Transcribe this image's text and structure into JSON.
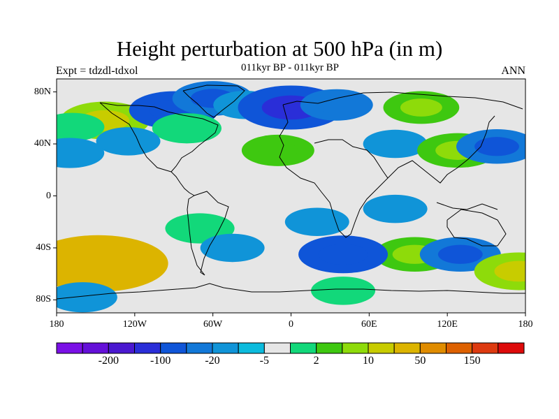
{
  "title": "Height perturbation at 500 hPa (in m)",
  "subtitle": "011kyr BP - 011kyr BP",
  "left_label": "Expt = tdzdl-tdxol",
  "right_label": "ANN",
  "chart_data": {
    "type": "heatmap",
    "title": "Height perturbation at 500 hPa (in m)",
    "subtitle": "011kyr BP - 011kyr BP",
    "annotation_left": "Expt = tdzdl-tdxol",
    "annotation_right": "ANN",
    "projection": "cylindrical-equidistant",
    "xlim": [
      -180,
      180
    ],
    "ylim": [
      -90,
      90
    ],
    "x_ticks": [
      {
        "value": -180,
        "label": "180"
      },
      {
        "value": -120,
        "label": "120W"
      },
      {
        "value": -60,
        "label": "60W"
      },
      {
        "value": 0,
        "label": "0"
      },
      {
        "value": 60,
        "label": "60E"
      },
      {
        "value": 120,
        "label": "120E"
      },
      {
        "value": 180,
        "label": "180"
      }
    ],
    "y_ticks": [
      {
        "value": 80,
        "label": "80N"
      },
      {
        "value": 40,
        "label": "40N"
      },
      {
        "value": 0,
        "label": "0"
      },
      {
        "value": -40,
        "label": "40S"
      },
      {
        "value": -80,
        "label": "80S"
      }
    ],
    "colorbar": {
      "colors": [
        "#7a10e6",
        "#6410d8",
        "#4a18d0",
        "#2a2ed8",
        "#0f55d8",
        "#1278d8",
        "#1094d8",
        "#0cbbdd",
        "#e6e6e6",
        "#12d87a",
        "#3ec810",
        "#8edb0a",
        "#c8cc00",
        "#dcb400",
        "#e08c00",
        "#dd6000",
        "#dd3a10",
        "#dd0a0a"
      ],
      "tick_labels": [
        "-200",
        "-100",
        "-20",
        "-5",
        "2",
        "10",
        "50",
        "150"
      ]
    },
    "fields": [
      {
        "lon": -143,
        "lat": 58,
        "value": 20
      },
      {
        "lon": -168,
        "lat": 53,
        "value": 5
      },
      {
        "lon": -90,
        "lat": 66,
        "value": -20
      },
      {
        "lon": -60,
        "lat": 75,
        "value": -15
      },
      {
        "lon": -35,
        "lat": 70,
        "value": -5
      },
      {
        "lon": -80,
        "lat": 52,
        "value": 8
      },
      {
        "lon": -125,
        "lat": 42,
        "value": -5
      },
      {
        "lon": 0,
        "lat": 68,
        "value": -30
      },
      {
        "lon": -10,
        "lat": 35,
        "value": 10
      },
      {
        "lon": 35,
        "lat": 70,
        "value": -10
      },
      {
        "lon": 100,
        "lat": 68,
        "value": 12
      },
      {
        "lon": 80,
        "lat": 40,
        "value": -5
      },
      {
        "lon": 128,
        "lat": 35,
        "value": 15
      },
      {
        "lon": 158,
        "lat": 38,
        "value": -15
      },
      {
        "lon": -170,
        "lat": 33,
        "value": -8
      },
      {
        "lon": -70,
        "lat": -25,
        "value": 8
      },
      {
        "lon": 20,
        "lat": -20,
        "value": -5
      },
      {
        "lon": 80,
        "lat": -10,
        "value": -5
      },
      {
        "lon": 95,
        "lat": -45,
        "value": 15
      },
      {
        "lon": 130,
        "lat": -45,
        "value": -15
      },
      {
        "lon": -148,
        "lat": -52,
        "value": 50
      },
      {
        "lon": 40,
        "lat": -45,
        "value": -20
      },
      {
        "lon": -45,
        "lat": -40,
        "value": -5
      },
      {
        "lon": 40,
        "lat": -73,
        "value": 5
      },
      {
        "lon": -160,
        "lat": -78,
        "value": -8
      },
      {
        "lon": 175,
        "lat": -58,
        "value": 20
      }
    ]
  },
  "colors": {
    "background": "#ffffff",
    "neutral": "#e6e6e6",
    "coastline": "#000000"
  }
}
